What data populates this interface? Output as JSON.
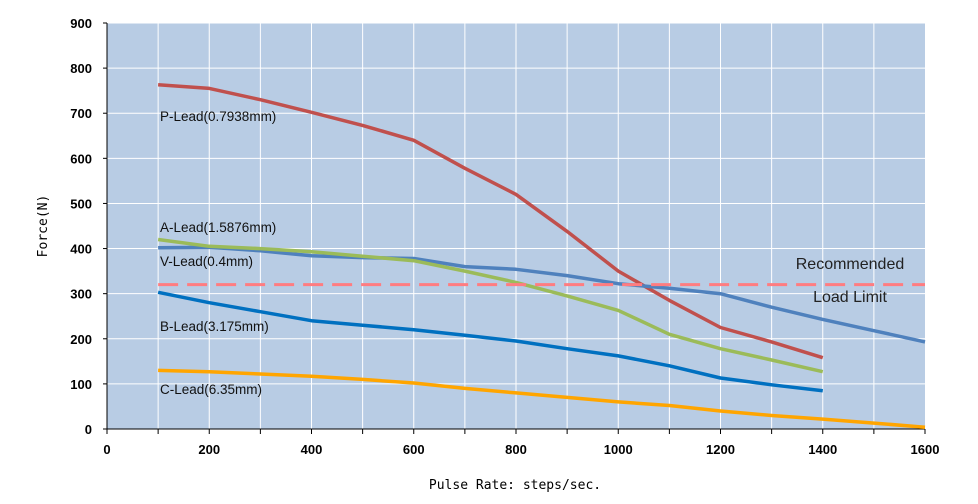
{
  "chart_data": {
    "type": "line",
    "title": "",
    "xlabel": "Pulse Rate: steps/sec.",
    "ylabel": "Force(N)",
    "xlim": [
      0,
      1600
    ],
    "ylim": [
      0,
      900
    ],
    "x_ticks": [
      0,
      200,
      400,
      600,
      800,
      1000,
      1200,
      1400,
      1600
    ],
    "y_ticks": [
      0,
      100,
      200,
      300,
      400,
      500,
      600,
      700,
      800,
      900
    ],
    "grid": true,
    "legend": "none (series labelled inline)",
    "plot_background": "#b8cce4",
    "series": [
      {
        "name": "P-Lead(0.7938mm)",
        "color": "#c0504d",
        "x": [
          100,
          200,
          300,
          400,
          500,
          600,
          700,
          800,
          900,
          1000,
          1100,
          1200,
          1300,
          1400
        ],
        "y": [
          763,
          755,
          730,
          702,
          673,
          640,
          578,
          520,
          438,
          350,
          285,
          225,
          193,
          158
        ]
      },
      {
        "name": "A-Lead(1.5876mm)",
        "color": "#4f81bd",
        "x": [
          100,
          200,
          300,
          400,
          500,
          600,
          700,
          800,
          900,
          1000,
          1100,
          1200,
          1300,
          1400,
          1500,
          1600
        ],
        "y": [
          402,
          403,
          395,
          384,
          380,
          378,
          360,
          354,
          340,
          322,
          312,
          300,
          270,
          243,
          218,
          193
        ]
      },
      {
        "name": "V-Lead(0.4mm)",
        "color": "#9bbb59",
        "x": [
          100,
          200,
          300,
          400,
          500,
          600,
          700,
          800,
          900,
          1000,
          1100,
          1200,
          1300,
          1400
        ],
        "y": [
          420,
          405,
          400,
          393,
          383,
          373,
          350,
          325,
          295,
          263,
          210,
          178,
          153,
          127
        ]
      },
      {
        "name": "B-Lead(3.175mm)",
        "color": "#0070c0",
        "x": [
          100,
          200,
          300,
          400,
          500,
          600,
          700,
          800,
          900,
          1000,
          1100,
          1200,
          1300,
          1400
        ],
        "y": [
          303,
          280,
          260,
          240,
          230,
          220,
          208,
          195,
          178,
          162,
          140,
          113,
          98,
          85
        ]
      },
      {
        "name": "C-Lead(6.35mm)",
        "color": "#ffa500",
        "x": [
          100,
          200,
          300,
          400,
          500,
          600,
          700,
          800,
          900,
          1000,
          1100,
          1200,
          1300,
          1400,
          1500,
          1600
        ],
        "y": [
          130,
          127,
          122,
          117,
          110,
          102,
          90,
          80,
          70,
          60,
          52,
          40,
          30,
          22,
          13,
          4
        ]
      }
    ],
    "reference_line": {
      "label_line1": "Recommended",
      "label_line2": "Load Limit",
      "y": 320,
      "color": "#ff7c80",
      "style": "dashed"
    }
  }
}
